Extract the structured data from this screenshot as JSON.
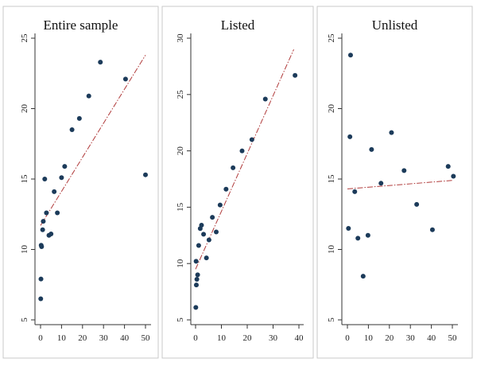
{
  "chart_data": [
    {
      "type": "scatter",
      "title": "Entire sample",
      "xlim": [
        0,
        50
      ],
      "ylim": [
        5,
        25
      ],
      "xticks": [
        0,
        10,
        20,
        30,
        40,
        50
      ],
      "yticks": [
        5,
        10,
        15,
        20,
        25
      ],
      "grid": false,
      "marker_color": "#1c3b5a",
      "points": [
        {
          "x": 0.1,
          "y": 6.5
        },
        {
          "x": 0.2,
          "y": 7.9
        },
        {
          "x": 0.3,
          "y": 10.3
        },
        {
          "x": 0.5,
          "y": 10.2
        },
        {
          "x": 1,
          "y": 11.4
        },
        {
          "x": 1.3,
          "y": 12.0
        },
        {
          "x": 2,
          "y": 15.0
        },
        {
          "x": 2.8,
          "y": 12.6
        },
        {
          "x": 4,
          "y": 11.0
        },
        {
          "x": 5,
          "y": 11.1
        },
        {
          "x": 6.5,
          "y": 14.1
        },
        {
          "x": 8,
          "y": 12.6
        },
        {
          "x": 10,
          "y": 15.1
        },
        {
          "x": 11.5,
          "y": 15.9
        },
        {
          "x": 15,
          "y": 18.5
        },
        {
          "x": 18.5,
          "y": 19.3
        },
        {
          "x": 23,
          "y": 20.9
        },
        {
          "x": 28.5,
          "y": 23.3
        },
        {
          "x": 40.5,
          "y": 22.1
        },
        {
          "x": 50,
          "y": 15.3
        }
      ],
      "fit_line": {
        "x": [
          0,
          50
        ],
        "y": [
          11.7,
          23.8
        ],
        "color": "#b03a3a",
        "style": "dashed"
      }
    },
    {
      "type": "scatter",
      "title": "Listed",
      "xlim": [
        0,
        40
      ],
      "ylim": [
        5,
        30
      ],
      "xticks": [
        0,
        10,
        20,
        30,
        40
      ],
      "yticks": [
        5,
        10,
        15,
        20,
        25,
        30
      ],
      "grid": false,
      "marker_color": "#1c3b5a",
      "points": [
        {
          "x": 0.1,
          "y": 6.1
        },
        {
          "x": 0.3,
          "y": 8.1
        },
        {
          "x": 0.5,
          "y": 8.6
        },
        {
          "x": 0.8,
          "y": 9.0
        },
        {
          "x": 0.2,
          "y": 10.2
        },
        {
          "x": 1.2,
          "y": 11.6
        },
        {
          "x": 1.8,
          "y": 13.1
        },
        {
          "x": 2.3,
          "y": 13.4
        },
        {
          "x": 3.1,
          "y": 12.6
        },
        {
          "x": 4.2,
          "y": 10.5
        },
        {
          "x": 5.2,
          "y": 12.1
        },
        {
          "x": 6.5,
          "y": 14.1
        },
        {
          "x": 8,
          "y": 12.8
        },
        {
          "x": 9.5,
          "y": 15.2
        },
        {
          "x": 11.8,
          "y": 16.6
        },
        {
          "x": 14.5,
          "y": 18.5
        },
        {
          "x": 18,
          "y": 20.0
        },
        {
          "x": 21.8,
          "y": 21.0
        },
        {
          "x": 27,
          "y": 24.6
        },
        {
          "x": 38.5,
          "y": 26.7
        }
      ],
      "fit_line": {
        "x": [
          0,
          38
        ],
        "y": [
          9.5,
          29.0
        ],
        "color": "#b03a3a",
        "style": "dashed"
      }
    },
    {
      "type": "scatter",
      "title": "Unlisted",
      "xlim": [
        0,
        50
      ],
      "ylim": [
        5,
        25
      ],
      "xticks": [
        0,
        10,
        20,
        30,
        40,
        50
      ],
      "yticks": [
        5,
        10,
        15,
        20,
        25
      ],
      "grid": false,
      "marker_color": "#1c3b5a",
      "points": [
        {
          "x": 1.5,
          "y": 23.8
        },
        {
          "x": 1.2,
          "y": 18.0
        },
        {
          "x": 0.5,
          "y": 11.5
        },
        {
          "x": 3.5,
          "y": 14.1
        },
        {
          "x": 5,
          "y": 10.8
        },
        {
          "x": 7.5,
          "y": 8.1
        },
        {
          "x": 9.8,
          "y": 11.0
        },
        {
          "x": 11.5,
          "y": 17.1
        },
        {
          "x": 16,
          "y": 14.7
        },
        {
          "x": 21,
          "y": 18.3
        },
        {
          "x": 27,
          "y": 15.6
        },
        {
          "x": 33,
          "y": 13.2
        },
        {
          "x": 40.5,
          "y": 11.4
        },
        {
          "x": 48,
          "y": 15.9
        },
        {
          "x": 50.5,
          "y": 15.2
        }
      ],
      "fit_line": {
        "x": [
          0,
          50
        ],
        "y": [
          14.3,
          14.9
        ],
        "color": "#b03a3a",
        "style": "dashed"
      }
    }
  ]
}
